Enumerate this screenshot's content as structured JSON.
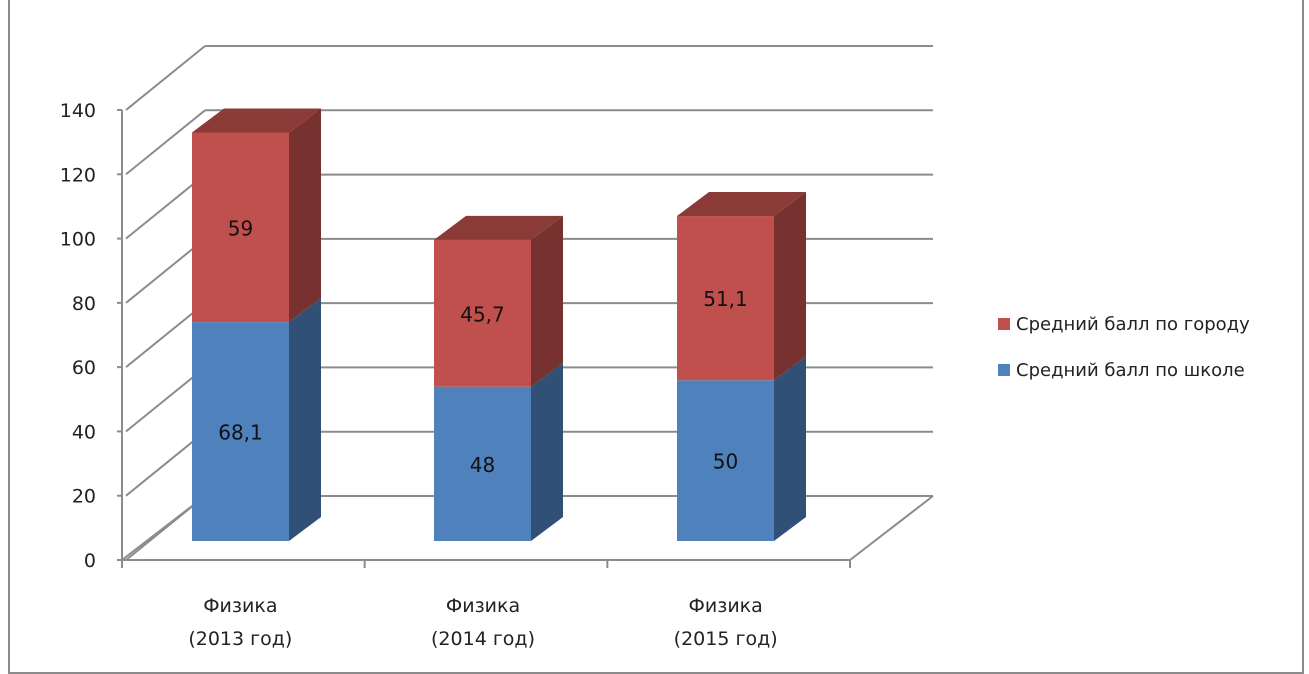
{
  "chart_data": {
    "type": "bar",
    "stacked": true,
    "three_d": true,
    "categories": [
      [
        "Физика",
        "(2013 год)"
      ],
      [
        "Физика",
        "(2014 год)"
      ],
      [
        "Физика",
        "(2015 год)"
      ]
    ],
    "series": [
      {
        "name": "Средний балл по школе",
        "values": [
          68.1,
          48,
          50
        ],
        "labels": [
          "68,1",
          "48",
          "50"
        ],
        "color": "#4f81bd"
      },
      {
        "name": "Средний балл по городу",
        "values": [
          59,
          45.7,
          51.1
        ],
        "labels": [
          "59",
          "45,7",
          "51,1"
        ],
        "color": "#c0504d"
      }
    ],
    "ylim": [
      0,
      140
    ],
    "yticks": [
      "0",
      "20",
      "40",
      "60",
      "80",
      "100",
      "120",
      "140"
    ],
    "grid": true,
    "legend_position": "right",
    "legend_order": [
      "Средний балл по городу",
      "Средний балл по школе"
    ]
  }
}
